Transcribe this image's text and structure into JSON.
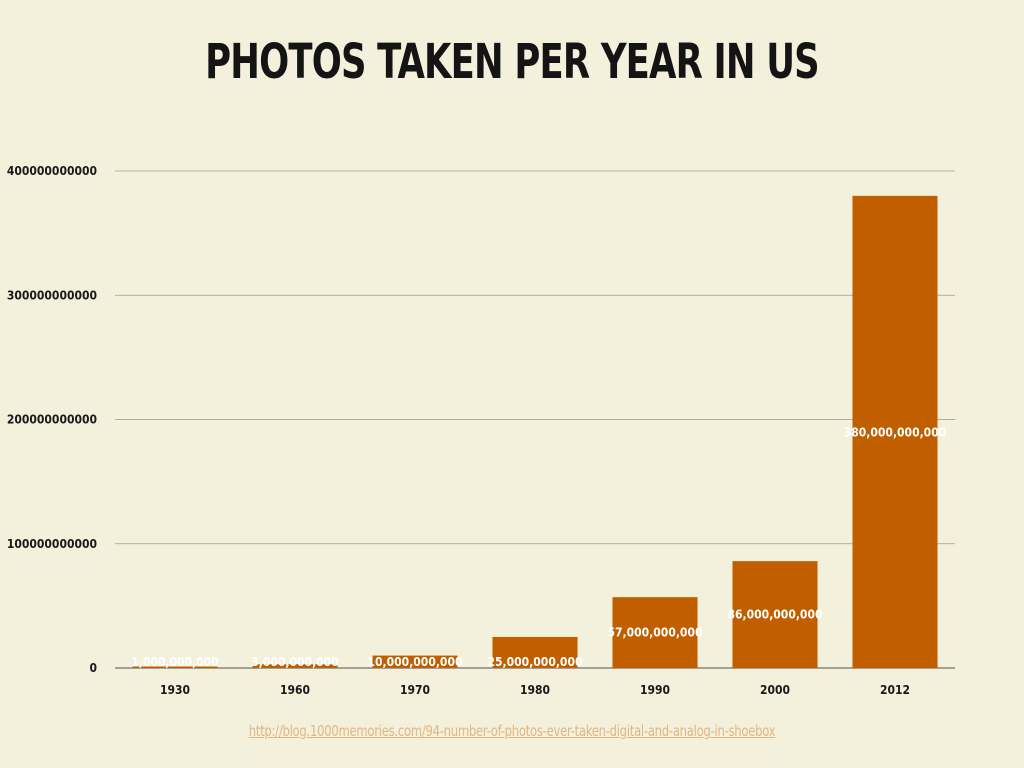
{
  "chart_data": {
    "type": "bar",
    "title": "PHOTOS TAKEN PER YEAR IN US",
    "categories": [
      "1930",
      "1960",
      "1970",
      "1980",
      "1990",
      "2000",
      "2012"
    ],
    "values": [
      1000000000,
      3000000000,
      10000000000,
      25000000000,
      57000000000,
      86000000000,
      380000000000
    ],
    "data_labels": [
      "1,000,000,000",
      "3,000,000,000",
      "10,000,000,000",
      "25,000,000,000",
      "57,000,000,000",
      "86,000,000,000",
      "380,000,000,000"
    ],
    "y_ticks": [
      0,
      100000000000,
      200000000000,
      300000000000,
      400000000000
    ],
    "y_tick_labels": [
      "0",
      "100000000000",
      "200000000000",
      "300000000000",
      "400000000000"
    ],
    "ylim": [
      0,
      400000000000
    ],
    "xlabel": "",
    "ylabel": "",
    "grid": true,
    "legend": "none",
    "colors": {
      "bar": "#c05e00",
      "background": "#f3f0dc",
      "gridline": "#9a9a90",
      "data_label": "#ffffff",
      "link": "#e3b681"
    }
  },
  "source": {
    "link_text": "http://blog.1000memories.com/94-number-of-photos-ever-taken-digital-and-analog-in-shoebox"
  }
}
